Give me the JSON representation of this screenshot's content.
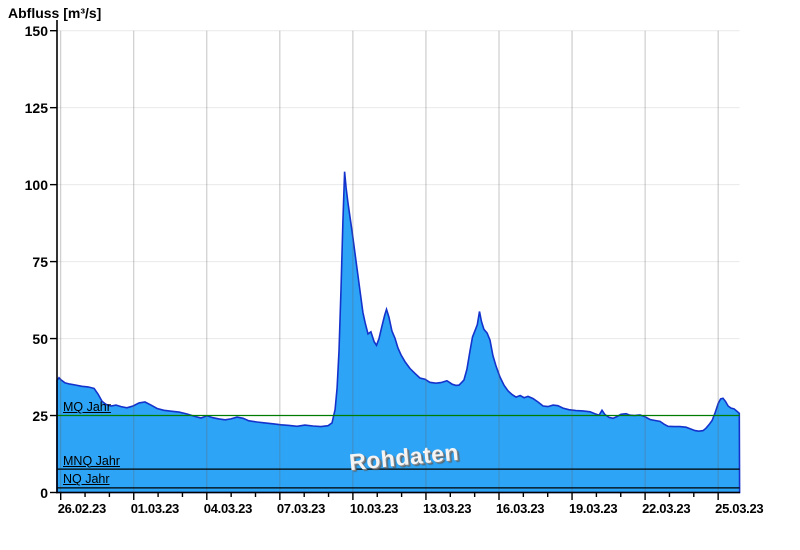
{
  "title": "Abfluss [m³/s]",
  "watermark": "Rohdaten",
  "colors": {
    "area_fill": "#2da4f5",
    "area_stroke": "#1433cc",
    "mq_line": "#007c00",
    "ref_line": "#000000",
    "axis": "#000000",
    "h_grid": "#e9e9e9",
    "v_grid": "rgba(100,100,100,0.38)",
    "text": "#000000"
  },
  "chart_data": {
    "type": "area",
    "title": "Abfluss [m³/s]",
    "ylabel": "Abfluss [m³/s]",
    "xlabel": "",
    "ylim": [
      0,
      150
    ],
    "y_ticks": [
      0,
      25,
      50,
      75,
      100,
      125,
      150
    ],
    "x_tick_labels": [
      "26.02.23",
      "01.03.23",
      "04.03.23",
      "07.03.23",
      "10.03.23",
      "13.03.23",
      "16.03.23",
      "19.03.23",
      "22.03.23",
      "25.03.23"
    ],
    "x_tick_days": [
      0,
      3,
      6,
      9,
      12,
      15,
      18,
      21,
      24,
      27
    ],
    "x_minor_tick_step_days": 1,
    "x_range_days": [
      -0.15,
      27.87
    ],
    "grid": true,
    "legend": "none",
    "watermark": "Rohdaten",
    "reference_lines": [
      {
        "label": "MQ Jahr",
        "value": 25.0,
        "color": "#007c00"
      },
      {
        "label": "MNQ Jahr",
        "value": 7.6,
        "color": "#000000"
      },
      {
        "label": "NQ Jahr",
        "value": 1.5,
        "color": "#000000"
      }
    ],
    "series": [
      {
        "name": "Rohdaten",
        "unit": "m³/s",
        "points": [
          [
            -0.15,
            36.4
          ],
          [
            -0.07,
            37.3
          ],
          [
            0.01,
            36.6
          ],
          [
            0.18,
            35.6
          ],
          [
            0.38,
            35.2
          ],
          [
            0.63,
            34.9
          ],
          [
            0.87,
            34.5
          ],
          [
            1.12,
            34.3
          ],
          [
            1.37,
            33.8
          ],
          [
            1.53,
            32.0
          ],
          [
            1.7,
            29.6
          ],
          [
            1.86,
            28.6
          ],
          [
            2.07,
            28.1
          ],
          [
            2.27,
            28.4
          ],
          [
            2.48,
            27.9
          ],
          [
            2.72,
            27.5
          ],
          [
            2.97,
            28.1
          ],
          [
            3.22,
            29.1
          ],
          [
            3.46,
            29.4
          ],
          [
            3.71,
            28.4
          ],
          [
            3.96,
            27.3
          ],
          [
            4.24,
            26.7
          ],
          [
            4.53,
            26.4
          ],
          [
            4.86,
            26.1
          ],
          [
            5.19,
            25.5
          ],
          [
            5.52,
            24.7
          ],
          [
            5.76,
            24.2
          ],
          [
            6.01,
            24.9
          ],
          [
            6.25,
            24.3
          ],
          [
            6.5,
            23.9
          ],
          [
            6.75,
            23.6
          ],
          [
            6.99,
            23.9
          ],
          [
            7.24,
            24.5
          ],
          [
            7.49,
            24.1
          ],
          [
            7.73,
            23.3
          ],
          [
            8.06,
            22.9
          ],
          [
            8.39,
            22.6
          ],
          [
            8.72,
            22.3
          ],
          [
            9.05,
            22.0
          ],
          [
            9.38,
            21.8
          ],
          [
            9.71,
            21.5
          ],
          [
            10.03,
            21.9
          ],
          [
            10.36,
            21.6
          ],
          [
            10.69,
            21.4
          ],
          [
            10.98,
            21.7
          ],
          [
            11.14,
            22.6
          ],
          [
            11.27,
            27.0
          ],
          [
            11.35,
            34.0
          ],
          [
            11.43,
            46.0
          ],
          [
            11.51,
            66.0
          ],
          [
            11.59,
            88.0
          ],
          [
            11.66,
            104.2
          ],
          [
            11.72,
            99.0
          ],
          [
            11.8,
            94.0
          ],
          [
            11.97,
            84.5
          ],
          [
            12.13,
            75.0
          ],
          [
            12.29,
            65.5
          ],
          [
            12.41,
            58.5
          ],
          [
            12.5,
            55.2
          ],
          [
            12.62,
            51.5
          ],
          [
            12.74,
            52.2
          ],
          [
            12.87,
            49.0
          ],
          [
            12.97,
            47.8
          ],
          [
            13.07,
            50.0
          ],
          [
            13.19,
            54.0
          ],
          [
            13.3,
            57.5
          ],
          [
            13.38,
            59.5
          ],
          [
            13.48,
            57.0
          ],
          [
            13.6,
            52.5
          ],
          [
            13.73,
            50.1
          ],
          [
            13.85,
            47.0
          ],
          [
            13.97,
            44.8
          ],
          [
            14.14,
            42.5
          ],
          [
            14.34,
            40.3
          ],
          [
            14.55,
            38.7
          ],
          [
            14.75,
            37.2
          ],
          [
            14.96,
            36.8
          ],
          [
            15.16,
            35.8
          ],
          [
            15.41,
            35.5
          ],
          [
            15.62,
            35.7
          ],
          [
            15.86,
            36.3
          ],
          [
            16.07,
            35.2
          ],
          [
            16.23,
            34.8
          ],
          [
            16.36,
            34.9
          ],
          [
            16.56,
            36.5
          ],
          [
            16.68,
            40.0
          ],
          [
            16.81,
            46.0
          ],
          [
            16.91,
            50.5
          ],
          [
            17.01,
            52.5
          ],
          [
            17.11,
            54.5
          ],
          [
            17.2,
            58.8
          ],
          [
            17.28,
            55.5
          ],
          [
            17.38,
            53.0
          ],
          [
            17.51,
            51.8
          ],
          [
            17.63,
            49.5
          ],
          [
            17.75,
            44.5
          ],
          [
            17.88,
            41.0
          ],
          [
            18.04,
            37.5
          ],
          [
            18.21,
            34.8
          ],
          [
            18.37,
            33.0
          ],
          [
            18.54,
            31.8
          ],
          [
            18.7,
            31.0
          ],
          [
            18.87,
            31.5
          ],
          [
            19.03,
            30.8
          ],
          [
            19.19,
            31.2
          ],
          [
            19.4,
            30.5
          ],
          [
            19.6,
            29.4
          ],
          [
            19.81,
            28.1
          ],
          [
            20.01,
            27.9
          ],
          [
            20.22,
            28.4
          ],
          [
            20.42,
            28.2
          ],
          [
            20.63,
            27.4
          ],
          [
            20.87,
            26.9
          ],
          [
            21.16,
            26.6
          ],
          [
            21.45,
            26.5
          ],
          [
            21.74,
            26.2
          ],
          [
            21.94,
            25.6
          ],
          [
            22.11,
            25.1
          ],
          [
            22.23,
            26.7
          ],
          [
            22.35,
            25.3
          ],
          [
            22.52,
            24.4
          ],
          [
            22.68,
            24.1
          ],
          [
            22.85,
            24.7
          ],
          [
            23.01,
            25.4
          ],
          [
            23.22,
            25.6
          ],
          [
            23.38,
            25.1
          ],
          [
            23.58,
            25.0
          ],
          [
            23.79,
            25.2
          ],
          [
            24.0,
            24.6
          ],
          [
            24.2,
            23.7
          ],
          [
            24.41,
            23.4
          ],
          [
            24.61,
            23.1
          ],
          [
            24.78,
            22.2
          ],
          [
            24.94,
            21.5
          ],
          [
            25.19,
            21.4
          ],
          [
            25.43,
            21.4
          ],
          [
            25.68,
            21.2
          ],
          [
            25.89,
            20.6
          ],
          [
            26.05,
            20.1
          ],
          [
            26.21,
            19.9
          ],
          [
            26.38,
            20.1
          ],
          [
            26.5,
            20.9
          ],
          [
            26.62,
            22.0
          ],
          [
            26.75,
            23.4
          ],
          [
            26.87,
            25.8
          ],
          [
            27.0,
            28.9
          ],
          [
            27.1,
            30.4
          ],
          [
            27.2,
            30.6
          ],
          [
            27.3,
            29.6
          ],
          [
            27.41,
            28.1
          ],
          [
            27.53,
            27.4
          ],
          [
            27.65,
            27.2
          ],
          [
            27.77,
            26.4
          ],
          [
            27.87,
            25.7
          ]
        ]
      }
    ]
  }
}
